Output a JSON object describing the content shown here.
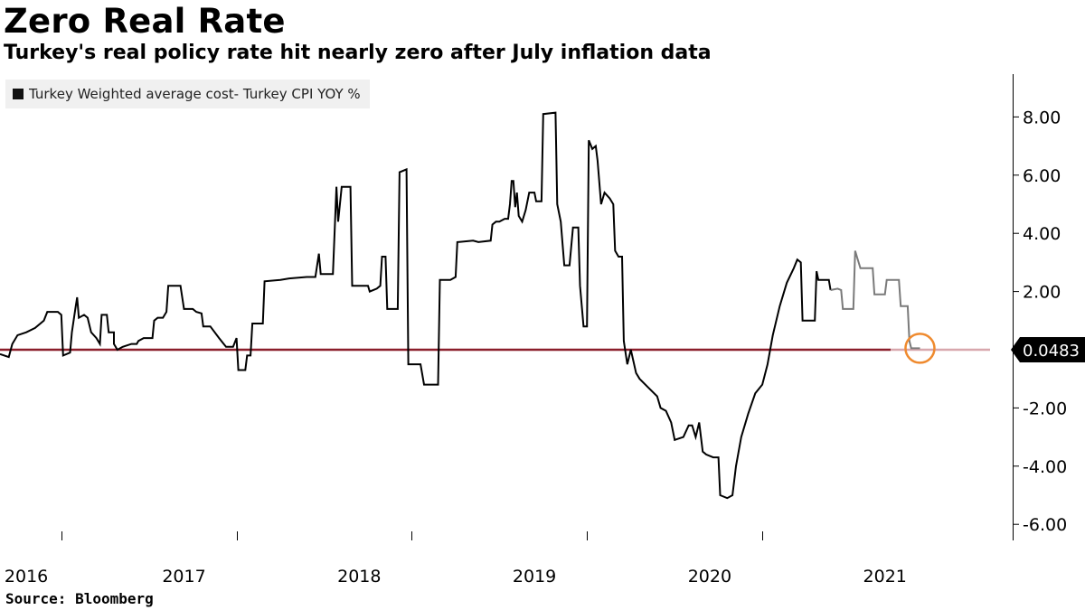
{
  "chart_data": {
    "type": "line",
    "title": "Zero Real Rate",
    "subtitle": "Turkey's real policy rate hit nearly zero after July inflation data",
    "source": "Source:  Bloomberg",
    "ylim": [
      -6.6,
      9.5
    ],
    "xlim": [
      2015.95,
      2021.6
    ],
    "y_ticks": [
      8,
      6,
      4,
      2,
      0,
      -2,
      -4,
      -6
    ],
    "y_tick_labels": [
      "8.00",
      "6.00",
      "4.00",
      "2.00",
      "",
      "-2.00",
      "-4.00",
      "-6.00"
    ],
    "x_ticks": [
      2016.1,
      2017.0,
      2018.0,
      2019.0,
      2020.0,
      2021.0
    ],
    "x_tick_labels": [
      "2016",
      "2017",
      "2018",
      "2019",
      "2020",
      "2021"
    ],
    "x_gridlines": [
      2016.3,
      2017.3,
      2018.3,
      2019.3,
      2020.3
    ],
    "reference_line": {
      "value": 0,
      "color": "#8b1e2b"
    },
    "last_value": {
      "label": "0.0483",
      "x": 2021.54,
      "y": 0.0483
    },
    "highlight_color": "#ef8a2e",
    "grid": false,
    "legend_position": "top-left",
    "series": [
      {
        "name": "Turkey Weighted average cost- Turkey CPI YOY %",
        "color": "#000000",
        "points": [
          [
            2015.95,
            -0.15
          ],
          [
            2016.0,
            -0.25
          ],
          [
            2016.02,
            0.2
          ],
          [
            2016.05,
            0.5
          ],
          [
            2016.1,
            0.6
          ],
          [
            2016.15,
            0.75
          ],
          [
            2016.2,
            1.0
          ],
          [
            2016.22,
            1.3
          ],
          [
            2016.28,
            1.3
          ],
          [
            2016.3,
            1.2
          ],
          [
            2016.31,
            -0.2
          ],
          [
            2016.35,
            -0.1
          ],
          [
            2016.36,
            0.6
          ],
          [
            2016.38,
            1.4
          ],
          [
            2016.39,
            1.8
          ],
          [
            2016.4,
            1.1
          ],
          [
            2016.43,
            1.2
          ],
          [
            2016.45,
            1.1
          ],
          [
            2016.47,
            0.6
          ],
          [
            2016.5,
            0.4
          ],
          [
            2016.52,
            0.2
          ],
          [
            2016.53,
            1.2
          ],
          [
            2016.56,
            1.2
          ],
          [
            2016.57,
            0.6
          ],
          [
            2016.6,
            0.6
          ],
          [
            2016.6,
            0.2
          ],
          [
            2016.62,
            0.0
          ],
          [
            2016.65,
            0.1
          ],
          [
            2016.7,
            0.2
          ],
          [
            2016.73,
            0.2
          ],
          [
            2016.74,
            0.3
          ],
          [
            2016.77,
            0.4
          ],
          [
            2016.82,
            0.4
          ],
          [
            2016.83,
            1.0
          ],
          [
            2016.85,
            1.1
          ],
          [
            2016.88,
            1.1
          ],
          [
            2016.9,
            1.3
          ],
          [
            2016.91,
            2.2
          ],
          [
            2016.98,
            2.2
          ],
          [
            2017.0,
            1.4
          ],
          [
            2017.05,
            1.4
          ],
          [
            2017.07,
            1.3
          ],
          [
            2017.1,
            1.25
          ],
          [
            2017.11,
            0.8
          ],
          [
            2017.15,
            0.8
          ],
          [
            2017.2,
            0.4
          ],
          [
            2017.24,
            0.1
          ],
          [
            2017.28,
            0.1
          ],
          [
            2017.3,
            0.4
          ],
          [
            2017.31,
            -0.7
          ],
          [
            2017.35,
            -0.7
          ],
          [
            2017.36,
            -0.2
          ],
          [
            2017.38,
            -0.2
          ],
          [
            2017.39,
            0.9
          ],
          [
            2017.45,
            0.9
          ],
          [
            2017.46,
            2.35
          ],
          [
            2017.55,
            2.4
          ],
          [
            2017.6,
            2.45
          ],
          [
            2017.7,
            2.5
          ],
          [
            2017.75,
            2.5
          ],
          [
            2017.77,
            3.3
          ],
          [
            2017.78,
            2.6
          ],
          [
            2017.85,
            2.6
          ],
          [
            2017.87,
            5.6
          ],
          [
            2017.88,
            4.4
          ],
          [
            2017.9,
            5.6
          ],
          [
            2017.95,
            5.6
          ],
          [
            2017.96,
            2.2
          ],
          [
            2018.05,
            2.2
          ],
          [
            2018.06,
            2.0
          ],
          [
            2018.1,
            2.1
          ],
          [
            2018.12,
            2.2
          ],
          [
            2018.13,
            3.2
          ],
          [
            2018.15,
            3.2
          ],
          [
            2018.16,
            1.4
          ],
          [
            2018.22,
            1.4
          ],
          [
            2018.23,
            6.1
          ],
          [
            2018.27,
            6.2
          ],
          [
            2018.28,
            -0.5
          ],
          [
            2018.35,
            -0.5
          ],
          [
            2018.37,
            -1.2
          ],
          [
            2018.45,
            -1.2
          ],
          [
            2018.46,
            2.4
          ],
          [
            2018.52,
            2.4
          ],
          [
            2018.55,
            2.5
          ],
          [
            2018.56,
            3.7
          ],
          [
            2018.65,
            3.75
          ],
          [
            2018.68,
            3.7
          ],
          [
            2018.75,
            3.75
          ],
          [
            2018.76,
            4.3
          ],
          [
            2018.78,
            4.4
          ],
          [
            2018.8,
            4.4
          ],
          [
            2018.83,
            4.5
          ],
          [
            2018.85,
            4.5
          ],
          [
            2018.86,
            5.0
          ],
          [
            2018.87,
            5.8
          ],
          [
            2018.88,
            5.8
          ],
          [
            2018.89,
            4.9
          ],
          [
            2018.9,
            5.4
          ],
          [
            2018.91,
            4.6
          ],
          [
            2018.93,
            4.4
          ],
          [
            2018.95,
            4.8
          ],
          [
            2018.97,
            5.4
          ],
          [
            2019.0,
            5.4
          ],
          [
            2019.01,
            5.1
          ],
          [
            2019.04,
            5.1
          ],
          [
            2019.05,
            8.1
          ],
          [
            2019.12,
            8.15
          ],
          [
            2019.13,
            5.0
          ],
          [
            2019.15,
            4.4
          ],
          [
            2019.17,
            2.9
          ],
          [
            2019.2,
            2.9
          ],
          [
            2019.22,
            4.2
          ],
          [
            2019.25,
            4.2
          ],
          [
            2019.26,
            2.2
          ],
          [
            2019.28,
            0.8
          ],
          [
            2019.3,
            0.8
          ],
          [
            2019.31,
            7.2
          ],
          [
            2019.33,
            6.9
          ],
          [
            2019.35,
            7.0
          ],
          [
            2019.36,
            6.5
          ],
          [
            2019.38,
            5.0
          ],
          [
            2019.4,
            5.4
          ],
          [
            2019.43,
            5.2
          ],
          [
            2019.45,
            5.0
          ],
          [
            2019.46,
            3.4
          ],
          [
            2019.48,
            3.2
          ],
          [
            2019.5,
            3.2
          ],
          [
            2019.51,
            0.3
          ],
          [
            2019.53,
            -0.5
          ],
          [
            2019.55,
            0.0
          ],
          [
            2019.58,
            -0.8
          ],
          [
            2019.6,
            -1.0
          ],
          [
            2019.65,
            -1.3
          ],
          [
            2019.7,
            -1.6
          ],
          [
            2019.72,
            -2.0
          ],
          [
            2019.75,
            -2.1
          ],
          [
            2019.78,
            -2.5
          ],
          [
            2019.8,
            -3.1
          ],
          [
            2019.85,
            -3.0
          ],
          [
            2019.88,
            -2.6
          ],
          [
            2019.9,
            -2.6
          ],
          [
            2019.92,
            -3.0
          ],
          [
            2019.94,
            -2.5
          ],
          [
            2019.96,
            -3.5
          ],
          [
            2019.98,
            -3.6
          ],
          [
            2020.02,
            -3.7
          ],
          [
            2020.05,
            -3.7
          ],
          [
            2020.06,
            -5.0
          ],
          [
            2020.1,
            -5.1
          ],
          [
            2020.13,
            -5.0
          ],
          [
            2020.15,
            -4.0
          ],
          [
            2020.18,
            -3.0
          ],
          [
            2020.22,
            -2.2
          ],
          [
            2020.26,
            -1.5
          ],
          [
            2020.3,
            -1.2
          ],
          [
            2020.33,
            -0.5
          ],
          [
            2020.36,
            0.5
          ],
          [
            2020.4,
            1.5
          ],
          [
            2020.44,
            2.3
          ],
          [
            2020.48,
            2.8
          ],
          [
            2020.5,
            3.1
          ],
          [
            2020.52,
            3.0
          ],
          [
            2020.53,
            1.0
          ],
          [
            2020.6,
            1.0
          ],
          [
            2020.61,
            2.7
          ],
          [
            2020.62,
            2.4
          ],
          [
            2020.65,
            2.4
          ],
          [
            2020.68,
            2.4
          ],
          [
            2020.69,
            2.05
          ],
          [
            2020.73,
            2.1
          ],
          [
            2020.75,
            2.05
          ],
          [
            2020.76,
            1.4
          ],
          [
            2020.82,
            1.4
          ],
          [
            2020.83,
            3.4
          ],
          [
            2020.84,
            3.2
          ],
          [
            2020.86,
            2.8
          ],
          [
            2020.93,
            2.8
          ],
          [
            2020.94,
            1.9
          ],
          [
            2021.0,
            1.9
          ],
          [
            2021.01,
            2.4
          ],
          [
            2021.08,
            2.4
          ],
          [
            2021.09,
            1.5
          ],
          [
            2021.13,
            1.5
          ],
          [
            2021.14,
            0.3
          ],
          [
            2021.15,
            0.05
          ],
          [
            2021.2,
            0.05
          ]
        ]
      }
    ]
  }
}
